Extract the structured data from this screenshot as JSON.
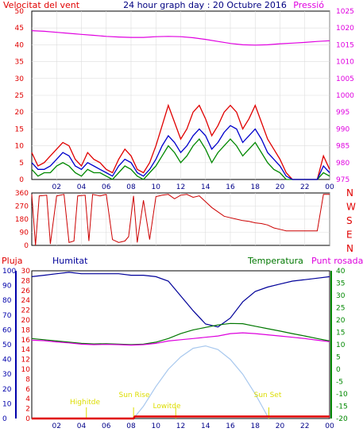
{
  "title": "24 hour graph day : 20 Octubre 2016",
  "colors": {
    "wind": "#e00000",
    "gust_dark": "#cc0000",
    "avg_wind": "#0000cc",
    "wind_green": "#008800",
    "pressure": "#e000e0",
    "humidity": "#000099",
    "temperature": "#007700",
    "dewpoint": "#dd00dd",
    "rain": "#e00000",
    "solar": "#a8c8ee",
    "events": "#dddd00",
    "left_axis": "#e00000",
    "humidity_axis": "#0000aa",
    "temp_axis": "#008800",
    "pressure_axis": "#e000e0",
    "ticks": "#000088",
    "labels": "#000080"
  },
  "x_ticks": [
    "02",
    "04",
    "06",
    "08",
    "10",
    "12",
    "14",
    "16",
    "18",
    "20",
    "22",
    "00"
  ],
  "chart_data": [
    {
      "type": "line",
      "panel": "wind_pressure",
      "title": "24 hour graph day : 20 Octubre 2016",
      "left_axis_label": "Velocitat del vent",
      "right_axis_label": "Pressió",
      "x_ticks": [
        "02",
        "04",
        "06",
        "08",
        "10",
        "12",
        "14",
        "16",
        "18",
        "20",
        "22",
        "00"
      ],
      "left_ylim": [
        0,
        50
      ],
      "left_ticks": [
        "0",
        "5",
        "10",
        "15",
        "20",
        "25",
        "30",
        "35",
        "40",
        "45",
        "50"
      ],
      "right_ylim": [
        975,
        1025
      ],
      "right_ticks": [
        "975",
        "980",
        "985",
        "990",
        "995",
        "1000",
        "1005",
        "1010",
        "1015",
        "1020",
        "1025"
      ],
      "grid": true,
      "series": [
        {
          "axis": "right",
          "x": [
            0,
            1,
            2,
            3,
            4,
            5,
            6,
            7,
            8,
            9,
            10,
            11,
            12,
            13,
            14,
            15,
            16,
            17,
            18,
            19,
            20,
            21,
            22,
            23,
            24
          ],
          "values": [
            1019.2,
            1019.0,
            1018.7,
            1018.4,
            1018.1,
            1017.8,
            1017.5,
            1017.3,
            1017.2,
            1017.2,
            1017.4,
            1017.5,
            1017.4,
            1017.1,
            1016.6,
            1016.0,
            1015.4,
            1015.0,
            1014.9,
            1015.0,
            1015.3,
            1015.5,
            1015.7,
            1016.0,
            1016.2
          ]
        },
        {
          "axis": "left",
          "x": [
            0,
            0.5,
            1,
            1.5,
            2,
            2.5,
            3,
            3.5,
            4,
            4.5,
            5,
            5.5,
            6,
            6.5,
            7,
            7.5,
            8,
            8.5,
            9,
            9.5,
            10,
            10.5,
            11,
            11.5,
            12,
            12.5,
            13,
            13.5,
            14,
            14.5,
            15,
            15.5,
            16,
            16.5,
            17,
            17.5,
            18,
            18.5,
            19,
            19.5,
            20,
            20.5,
            21,
            21.5,
            22,
            22.5,
            23,
            23.5,
            24
          ],
          "values": [
            8,
            4,
            5,
            7,
            9,
            11,
            10,
            6,
            4,
            8,
            6,
            5,
            3,
            2,
            6,
            9,
            7,
            3,
            2,
            5,
            10,
            16,
            22,
            17,
            12,
            15,
            20,
            22,
            18,
            13,
            16,
            20,
            22,
            20,
            15,
            18,
            22,
            17,
            12,
            9,
            6,
            2,
            0,
            0,
            0,
            0,
            0,
            7,
            3
          ]
        },
        {
          "axis": "left",
          "x": [
            0,
            0.5,
            1,
            1.5,
            2,
            2.5,
            3,
            3.5,
            4,
            4.5,
            5,
            5.5,
            6,
            6.5,
            7,
            7.5,
            8,
            8.5,
            9,
            9.5,
            10,
            10.5,
            11,
            11.5,
            12,
            12.5,
            13,
            13.5,
            14,
            14.5,
            15,
            15.5,
            16,
            16.5,
            17,
            17.5,
            18,
            18.5,
            19,
            19.5,
            20,
            20.5,
            21,
            21.5,
            22,
            22.5,
            23,
            23.5,
            24
          ],
          "values": [
            5,
            3,
            3,
            4,
            6,
            8,
            7,
            4,
            3,
            5,
            4,
            3,
            2,
            1,
            4,
            6,
            5,
            2,
            1,
            3,
            6,
            10,
            13,
            11,
            8,
            10,
            13,
            15,
            13,
            9,
            11,
            14,
            16,
            15,
            11,
            13,
            15,
            12,
            8,
            6,
            4,
            1,
            0,
            0,
            0,
            0,
            0,
            4,
            2
          ]
        },
        {
          "axis": "left",
          "x": [
            0,
            0.5,
            1,
            1.5,
            2,
            2.5,
            3,
            3.5,
            4,
            4.5,
            5,
            5.5,
            6,
            6.5,
            7,
            7.5,
            8,
            8.5,
            9,
            9.5,
            10,
            10.5,
            11,
            11.5,
            12,
            12.5,
            13,
            13.5,
            14,
            14.5,
            15,
            15.5,
            16,
            16.5,
            17,
            17.5,
            18,
            18.5,
            19,
            19.5,
            20,
            20.5,
            21,
            21.5,
            22,
            22.5,
            23,
            23.5,
            24
          ],
          "values": [
            3,
            1,
            2,
            2,
            4,
            5,
            4,
            2,
            1,
            3,
            2,
            2,
            1,
            0,
            2,
            4,
            3,
            1,
            0,
            2,
            4,
            7,
            10,
            8,
            5,
            7,
            10,
            12,
            9,
            5,
            8,
            10,
            12,
            10,
            7,
            9,
            11,
            8,
            5,
            3,
            2,
            0,
            0,
            0,
            0,
            0,
            0,
            2,
            1
          ]
        }
      ]
    },
    {
      "type": "line",
      "panel": "wind_direction",
      "x_ticks": [
        "02",
        "04",
        "06",
        "08",
        "10",
        "12",
        "14",
        "16",
        "18",
        "20",
        "22",
        "00"
      ],
      "ylim": [
        0,
        360
      ],
      "left_ticks": [
        "0",
        "90",
        "180",
        "270",
        "360"
      ],
      "right_ticks": [
        "N",
        "W",
        "S",
        "E",
        "N"
      ],
      "grid": true,
      "series": [
        {
          "x": [
            0,
            0.3,
            0.6,
            1.2,
            1.5,
            2.0,
            2.6,
            3.0,
            3.4,
            3.7,
            4.3,
            4.6,
            4.9,
            5.5,
            6.0,
            6.5,
            7.0,
            7.5,
            7.8,
            8.2,
            8.5,
            9.0,
            9.5,
            10.0,
            10.5,
            11.0,
            11.5,
            12.0,
            12.5,
            13.0,
            13.5,
            14.0,
            14.5,
            15.0,
            15.5,
            16.0,
            16.5,
            17.0,
            17.5,
            18.0,
            18.5,
            19.0,
            19.5,
            20.0,
            20.5,
            21.0,
            21.5,
            22.0,
            22.5,
            23.0,
            23.5,
            24.0
          ],
          "values": [
            350,
            0,
            340,
            345,
            10,
            340,
            350,
            20,
            30,
            340,
            345,
            30,
            350,
            340,
            350,
            40,
            20,
            30,
            60,
            340,
            20,
            310,
            40,
            335,
            345,
            350,
            320,
            345,
            350,
            330,
            340,
            300,
            260,
            230,
            200,
            190,
            180,
            170,
            165,
            155,
            150,
            140,
            120,
            110,
            100,
            100,
            100,
            100,
            100,
            100,
            350,
            350
          ]
        }
      ]
    },
    {
      "type": "line",
      "panel": "humidity_temperature_rain_solar",
      "legend": [
        "Pluja",
        "Humitat",
        "Temperatura",
        "Punt rosada"
      ],
      "x_ticks": [
        "02",
        "04",
        "06",
        "08",
        "10",
        "12",
        "14",
        "16",
        "18",
        "20",
        "22",
        "00"
      ],
      "humidity_ylim": [
        0,
        100
      ],
      "humidity_ticks": [
        "0",
        "10",
        "20",
        "30",
        "40",
        "50",
        "60",
        "70",
        "80",
        "90",
        "100"
      ],
      "rain_ylim": [
        0,
        30
      ],
      "rain_ticks": [
        "0",
        "2",
        "4",
        "6",
        "8",
        "10",
        "12",
        "14",
        "16",
        "18",
        "20",
        "22",
        "24",
        "26",
        "28",
        "30"
      ],
      "temp_ylim": [
        -20,
        40
      ],
      "temp_ticks": [
        "-20",
        "-15",
        "-10",
        "-5",
        "0",
        "5",
        "10",
        "15",
        "20",
        "25",
        "30",
        "35",
        "40"
      ],
      "grid": false,
      "events": [
        "Sun Rise",
        "Sun Set",
        "Highitde",
        "Lowitde"
      ],
      "series": [
        {
          "name": "Humitat",
          "axis": "humidity",
          "x": [
            0,
            1,
            2,
            3,
            4,
            5,
            6,
            7,
            8,
            9,
            10,
            11,
            12,
            13,
            14,
            15,
            16,
            17,
            18,
            19,
            20,
            21,
            22,
            23,
            24
          ],
          "values": [
            96,
            97,
            98,
            99,
            98,
            98,
            98,
            98,
            97,
            97,
            96,
            93,
            83,
            73,
            64,
            62,
            68,
            79,
            86,
            89,
            91,
            93,
            94,
            95,
            96
          ]
        },
        {
          "name": "Temperatura",
          "axis": "temp",
          "x": [
            0,
            1,
            2,
            3,
            4,
            5,
            6,
            7,
            8,
            9,
            10,
            11,
            12,
            13,
            14,
            15,
            16,
            17,
            18,
            19,
            20,
            21,
            22,
            23,
            24
          ],
          "values": [
            12.5,
            12,
            11.5,
            11,
            10.5,
            10.3,
            10.4,
            10.2,
            10,
            10.2,
            11,
            12.5,
            14.5,
            16,
            17,
            18,
            18.6,
            18.5,
            17.5,
            16.5,
            15.5,
            14.5,
            13.5,
            12.5,
            11.5
          ]
        },
        {
          "name": "Punt rosada",
          "axis": "temp",
          "x": [
            0,
            1,
            2,
            3,
            4,
            5,
            6,
            7,
            8,
            9,
            10,
            11,
            12,
            13,
            14,
            15,
            16,
            17,
            18,
            19,
            20,
            21,
            22,
            23,
            24
          ],
          "values": [
            11.8,
            11.6,
            11.1,
            10.7,
            10.2,
            10,
            10.1,
            10,
            9.8,
            10,
            10.5,
            11.5,
            12,
            12.5,
            13,
            13.5,
            14.5,
            14.8,
            14.5,
            14,
            13.5,
            13,
            12.5,
            11.8,
            11.2
          ]
        },
        {
          "name": "Solar",
          "axis": "temp",
          "x": [
            8.2,
            9,
            10,
            11,
            12,
            13,
            14,
            15,
            16,
            17,
            18,
            19.1
          ],
          "values": [
            -20,
            -15,
            -7,
            0,
            5,
            8.5,
            9.5,
            8,
            4,
            -2,
            -10,
            -20
          ]
        },
        {
          "name": "Pluja",
          "axis": "rain",
          "x": [
            0,
            8.2,
            8.3,
            24
          ],
          "values": [
            0,
            0,
            0.4,
            0.4
          ]
        }
      ]
    }
  ]
}
